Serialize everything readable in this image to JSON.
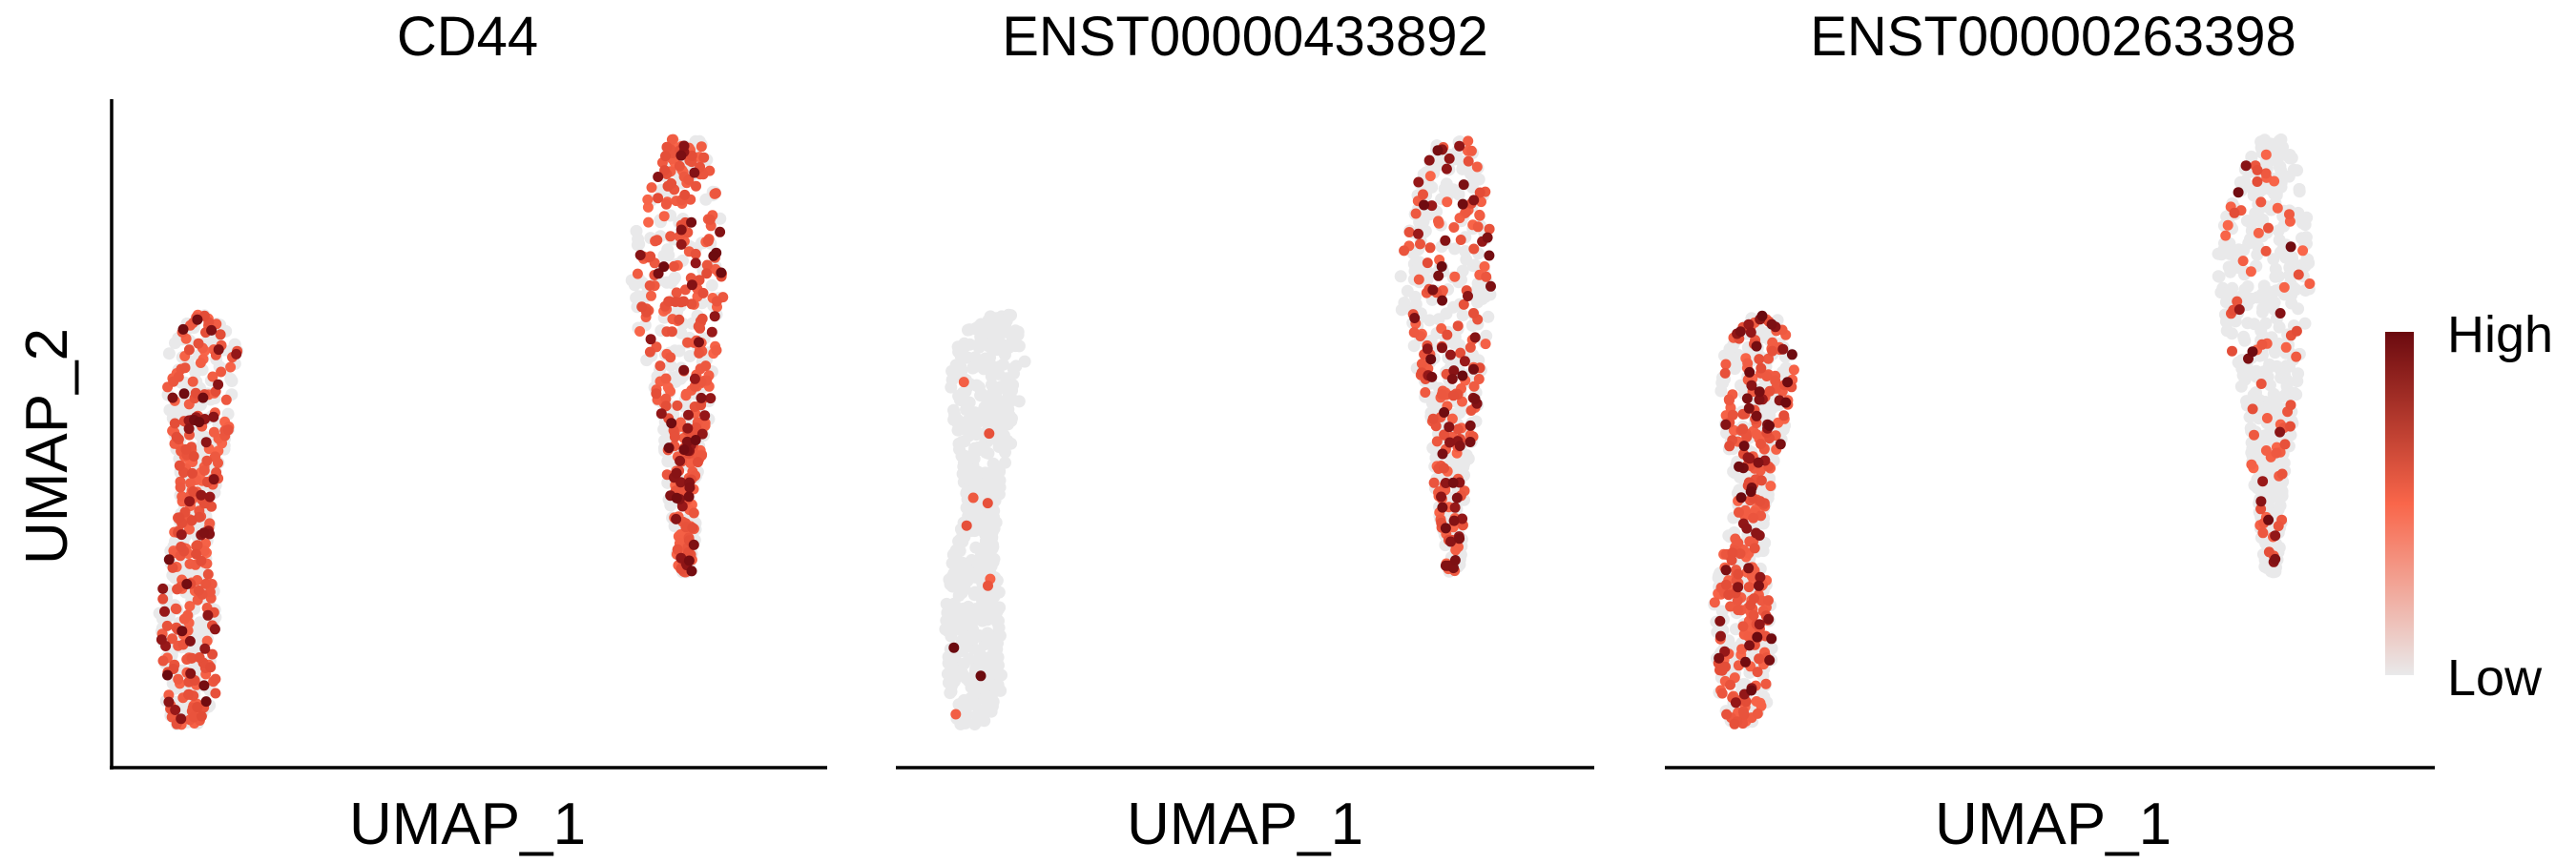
{
  "chart_data": {
    "type": "scatter",
    "ylabel": "UMAP_2",
    "legend": {
      "placement": "right",
      "high_label": "High",
      "low_label": "Low"
    },
    "color_scale": {
      "low": "#e9e9ea",
      "mid": "#f9664a",
      "high": "#6b0a0f"
    },
    "panels": [
      {
        "title": "CD44",
        "xlabel": "UMAP_1",
        "expressed_fraction_left": 0.46,
        "expressed_fraction_right": 0.6,
        "dark_fraction": 0.17,
        "seed": 11
      },
      {
        "title": "ENST00000433892",
        "xlabel": "UMAP_1",
        "expressed_fraction_left": 0.004,
        "expressed_fraction_right": 0.36,
        "dark_fraction": 0.28,
        "seed": 23
      },
      {
        "title": "ENST00000263398",
        "xlabel": "UMAP_1",
        "expressed_fraction_left": 0.46,
        "expressed_fraction_right": 0.14,
        "dark_fraction": 0.2,
        "seed": 37
      }
    ]
  }
}
